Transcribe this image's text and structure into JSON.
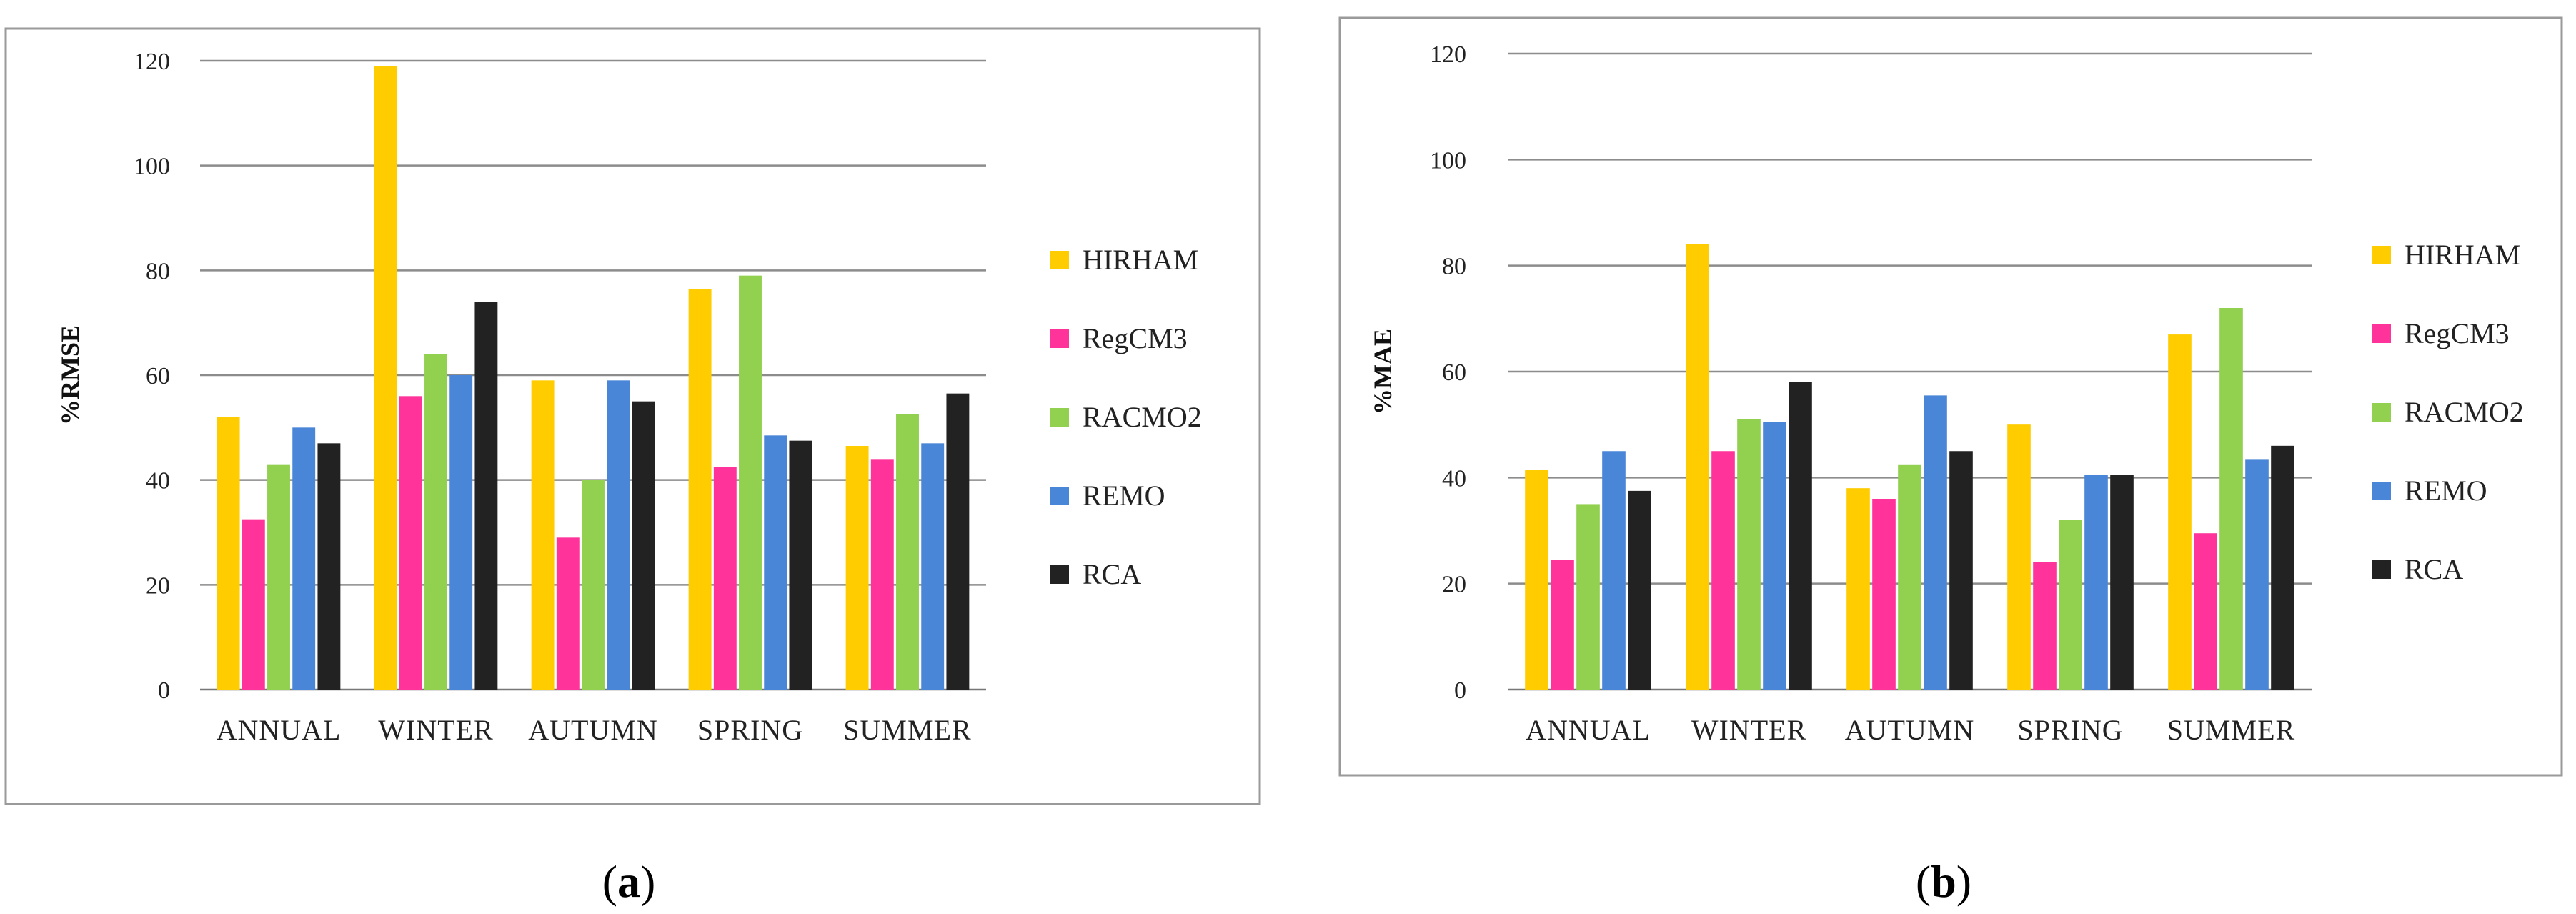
{
  "colors": {
    "HIRHAM": "#FFCC00",
    "RegCM3": "#FF3399",
    "RACMO2": "#92D050",
    "REMO": "#4A86D8",
    "RCA": "#222222",
    "grid": "#8c8c8c",
    "frame": "#9a9a9a"
  },
  "chart_data": [
    {
      "type": "bar",
      "ylabel": "%RMSE",
      "panel_label": "(a)",
      "panel_letter": "a",
      "ylim": [
        0,
        120
      ],
      "yticks": [
        0,
        20,
        40,
        60,
        80,
        100,
        120
      ],
      "categories": [
        "ANNUAL",
        "WINTER",
        "AUTUMN",
        "SPRING",
        "SUMMER"
      ],
      "legend_position": "right",
      "series": [
        {
          "name": "HIRHAM",
          "values": [
            52,
            119,
            59,
            76.5,
            46.5
          ]
        },
        {
          "name": "RegCM3",
          "values": [
            32.5,
            56,
            29,
            42.5,
            44
          ]
        },
        {
          "name": "RACMO2",
          "values": [
            43,
            64,
            40,
            79,
            52.5
          ]
        },
        {
          "name": "REMO",
          "values": [
            50,
            60,
            59,
            48.5,
            47
          ]
        },
        {
          "name": "RCA",
          "values": [
            47,
            74,
            55,
            47.5,
            56.5
          ]
        }
      ]
    },
    {
      "type": "bar",
      "ylabel": "%MAE",
      "panel_label": "(b)",
      "panel_letter": "b",
      "ylim": [
        0,
        120
      ],
      "yticks": [
        0,
        20,
        40,
        60,
        80,
        100,
        120
      ],
      "categories": [
        "ANNUAL",
        "WINTER",
        "AUTUMN",
        "SPRING",
        "SUMMER"
      ],
      "legend_position": "right",
      "series": [
        {
          "name": "HIRHAM",
          "values": [
            41.5,
            84,
            38,
            50,
            67
          ]
        },
        {
          "name": "RegCM3",
          "values": [
            24.5,
            45,
            36,
            24,
            29.5
          ]
        },
        {
          "name": "RACMO2",
          "values": [
            35,
            51,
            42.5,
            32,
            72
          ]
        },
        {
          "name": "REMO",
          "values": [
            45,
            50.5,
            55.5,
            40.5,
            43.5
          ]
        },
        {
          "name": "RCA",
          "values": [
            37.5,
            58,
            45,
            40.5,
            46
          ]
        }
      ]
    }
  ]
}
